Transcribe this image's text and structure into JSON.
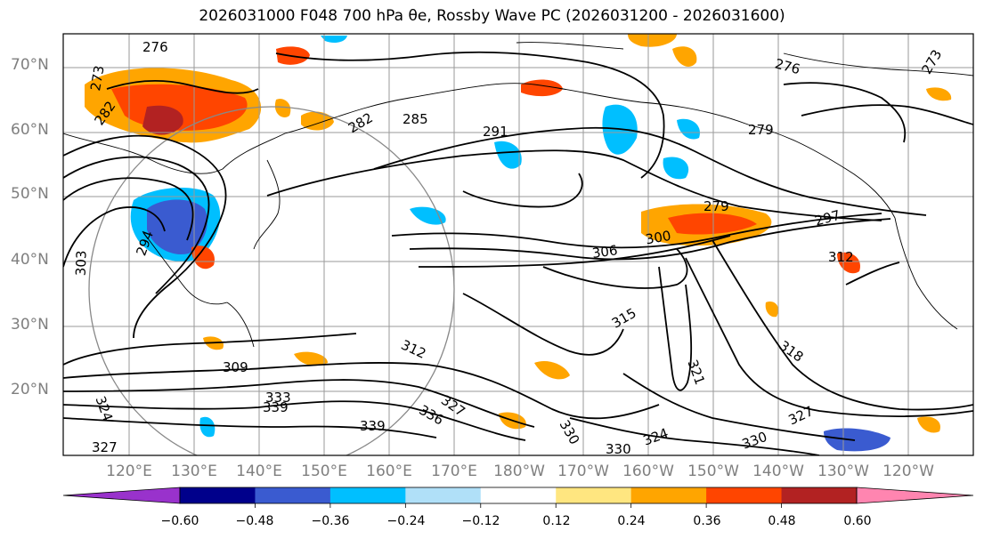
{
  "title": "2026031000 F048 700 hPa θe, Rossby Wave PC (2026031200 - 2026031600)",
  "lat_labels": [
    "70°N",
    "60°N",
    "50°N",
    "40°N",
    "30°N",
    "20°N"
  ],
  "lon_labels": [
    "120°E",
    "130°E",
    "140°E",
    "150°E",
    "160°E",
    "170°E",
    "180°W",
    "170°W",
    "160°W",
    "150°W",
    "140°W",
    "130°W",
    "120°W"
  ],
  "contour_labels": [
    "276",
    "273",
    "282",
    "282",
    "285",
    "291",
    "276",
    "273",
    "279",
    "279",
    "297",
    "300",
    "306",
    "312",
    "294",
    "303",
    "315",
    "309",
    "312",
    "318",
    "321",
    "327",
    "327",
    "330",
    "330",
    "330",
    "324",
    "324",
    "333",
    "336",
    "339",
    "339",
    "327"
  ],
  "colorbar": {
    "ticks": [
      "−0.60",
      "−0.48",
      "−0.36",
      "−0.24",
      "−0.12",
      "0.12",
      "0.24",
      "0.36",
      "0.48",
      "0.60"
    ],
    "colors": [
      "#9932cc",
      "#00008b",
      "#3a5bd0",
      "#00bfff",
      "#b0e0f8",
      "#ffffff",
      "#ffe680",
      "#ffa500",
      "#ff4500",
      "#b22222",
      "#ff85b0"
    ]
  },
  "colors": {
    "positive_anomaly": "#ffa500",
    "strong_positive": "#ff4500",
    "negative_anomaly": "#00bfff",
    "strong_negative": "#3a5bd0"
  }
}
